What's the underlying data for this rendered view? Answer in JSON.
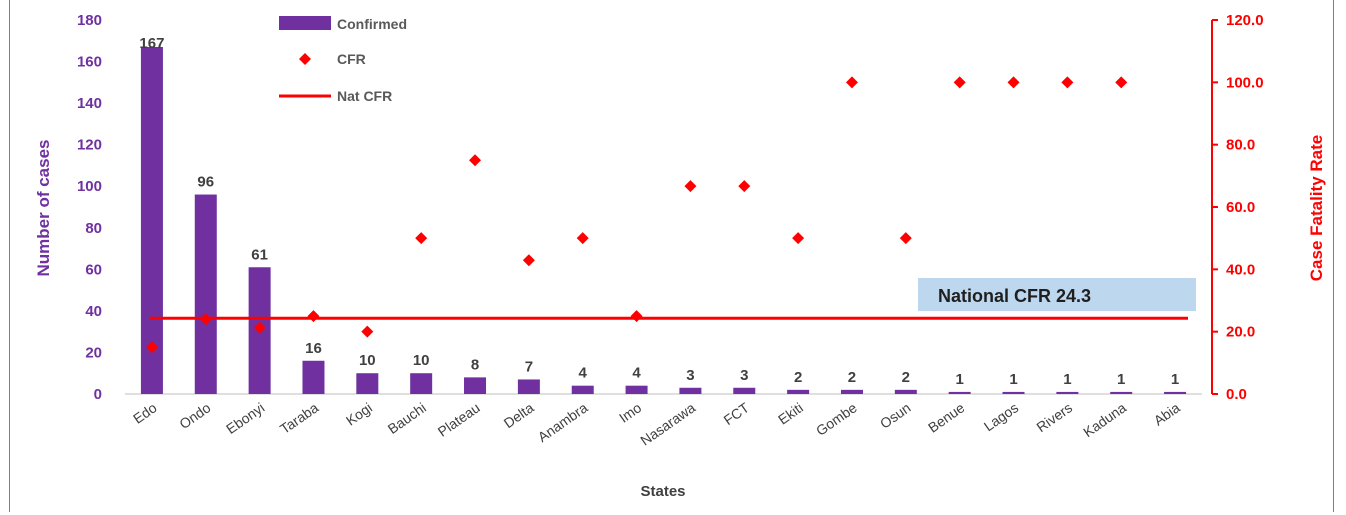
{
  "chart_data": {
    "type": "bar",
    "categories": [
      "Edo",
      "Ondo",
      "Ebonyi",
      "Taraba",
      "Kogi",
      "Bauchi",
      "Plateau",
      "Delta",
      "Anambra",
      "Imo",
      "Nasarawa",
      "FCT",
      "Ekiti",
      "Gombe",
      "Osun",
      "Benue",
      "Lagos",
      "Rivers",
      "Kaduna",
      "Abia"
    ],
    "series": [
      {
        "name": "Confirmed",
        "type": "bar",
        "axis": "left",
        "color": "#7030a0",
        "values": [
          167,
          96,
          61,
          16,
          10,
          10,
          8,
          7,
          4,
          4,
          3,
          3,
          2,
          2,
          2,
          1,
          1,
          1,
          1,
          1
        ]
      },
      {
        "name": "CFR",
        "type": "scatter",
        "axis": "right",
        "marker": "diamond",
        "color": "#ff0000",
        "values": [
          15.0,
          24.0,
          21.3,
          25.0,
          20.0,
          50.0,
          75.0,
          42.9,
          50.0,
          25.0,
          66.7,
          66.7,
          50.0,
          100.0,
          50.0,
          100.0,
          100.0,
          100.0,
          100.0,
          null
        ]
      },
      {
        "name": "Nat CFR",
        "type": "line",
        "axis": "right",
        "color": "#ff0000",
        "value": 24.3
      }
    ],
    "data_labels": [
      "167",
      "96",
      "61",
      "16",
      "10",
      "10",
      "8",
      "7",
      "4",
      "4",
      "3",
      "3",
      "2",
      "2",
      "2",
      "1",
      "1",
      "1",
      "1",
      "1"
    ],
    "xlabel": "States",
    "ylabel": "Number of cases",
    "y2label": "Case Fatality Rate",
    "ylim": [
      0,
      180
    ],
    "y2lim": [
      0,
      120
    ],
    "yticks": [
      "0",
      "20",
      "40",
      "60",
      "80",
      "100",
      "120",
      "140",
      "160",
      "180"
    ],
    "y2ticks": [
      "0.0",
      "20.0",
      "40.0",
      "60.0",
      "80.0",
      "100.0",
      "120.0"
    ],
    "annotation": "National CFR 24.3",
    "legend": [
      "Confirmed",
      "CFR",
      "Nat CFR"
    ],
    "legend_position": "top-left",
    "grid": false
  }
}
